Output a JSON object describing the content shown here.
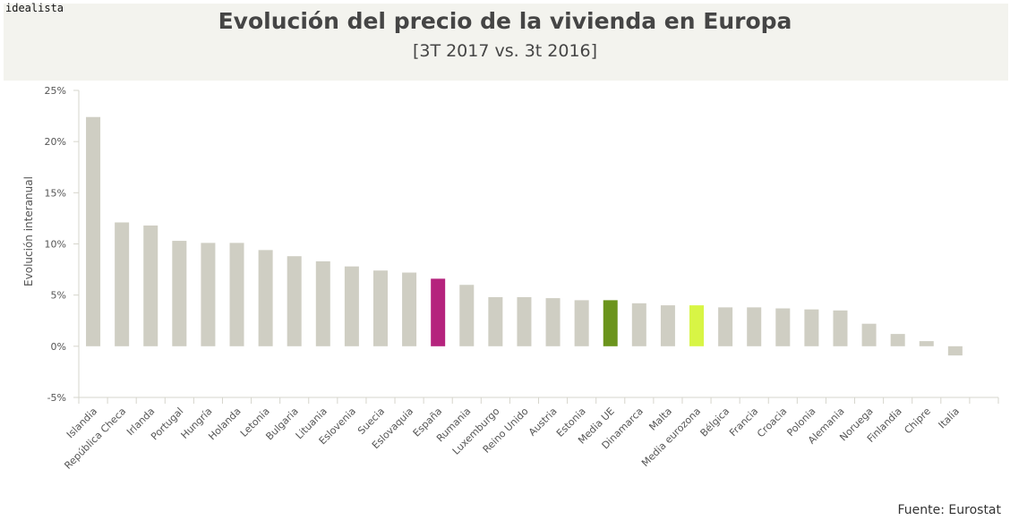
{
  "brand": "idealista",
  "source": "Fuente: Eurostat",
  "colors": {
    "default": "#cfcec3",
    "highlight_spain": "#b5237d",
    "highlight_eu": "#6b941c",
    "highlight_eurozone": "#d8f545",
    "axis": "#d6d5cc",
    "text": "#555555"
  },
  "chart_data": {
    "type": "bar",
    "title": "Evolución del precio de la vivienda en Europa",
    "subtitle": "[3T 2017 vs. 3t 2016]",
    "xlabel": "",
    "ylabel": "Evolución interanual",
    "ylim": [
      -5,
      25
    ],
    "yticks": [
      -5,
      0,
      5,
      10,
      15,
      20,
      25
    ],
    "ytick_labels": [
      "-5%",
      "0%",
      "5%",
      "10%",
      "15%",
      "20%",
      "25%"
    ],
    "grid": false,
    "categories": [
      "Islandia",
      "República Checa",
      "Irlanda",
      "Portugal",
      "Hungría",
      "Holanda",
      "Letonia",
      "Bulgaria",
      "Lituania",
      "Eslovenia",
      "Suecia",
      "Eslovaquia",
      "España",
      "Rumania",
      "Luxemburgo",
      "Reino Unido",
      "Austria",
      "Estonia",
      "Media UE",
      "Dinamarca",
      "Malta",
      "Media eurozona",
      "Bélgica",
      "Francia",
      "Croacia",
      "Polonia",
      "Alemania",
      "Noruega",
      "Finlandia",
      "Chipre",
      "Italia"
    ],
    "values": [
      22.4,
      12.1,
      11.8,
      10.3,
      10.1,
      10.1,
      9.4,
      8.8,
      8.3,
      7.8,
      7.4,
      7.2,
      6.6,
      6.0,
      4.8,
      4.8,
      4.7,
      4.5,
      4.5,
      4.2,
      4.0,
      4.0,
      3.8,
      3.8,
      3.7,
      3.6,
      3.5,
      2.2,
      1.2,
      0.5,
      -0.9
    ],
    "highlights": {
      "España": "highlight_spain",
      "Media UE": "highlight_eu",
      "Media eurozona": "highlight_eurozone"
    }
  }
}
